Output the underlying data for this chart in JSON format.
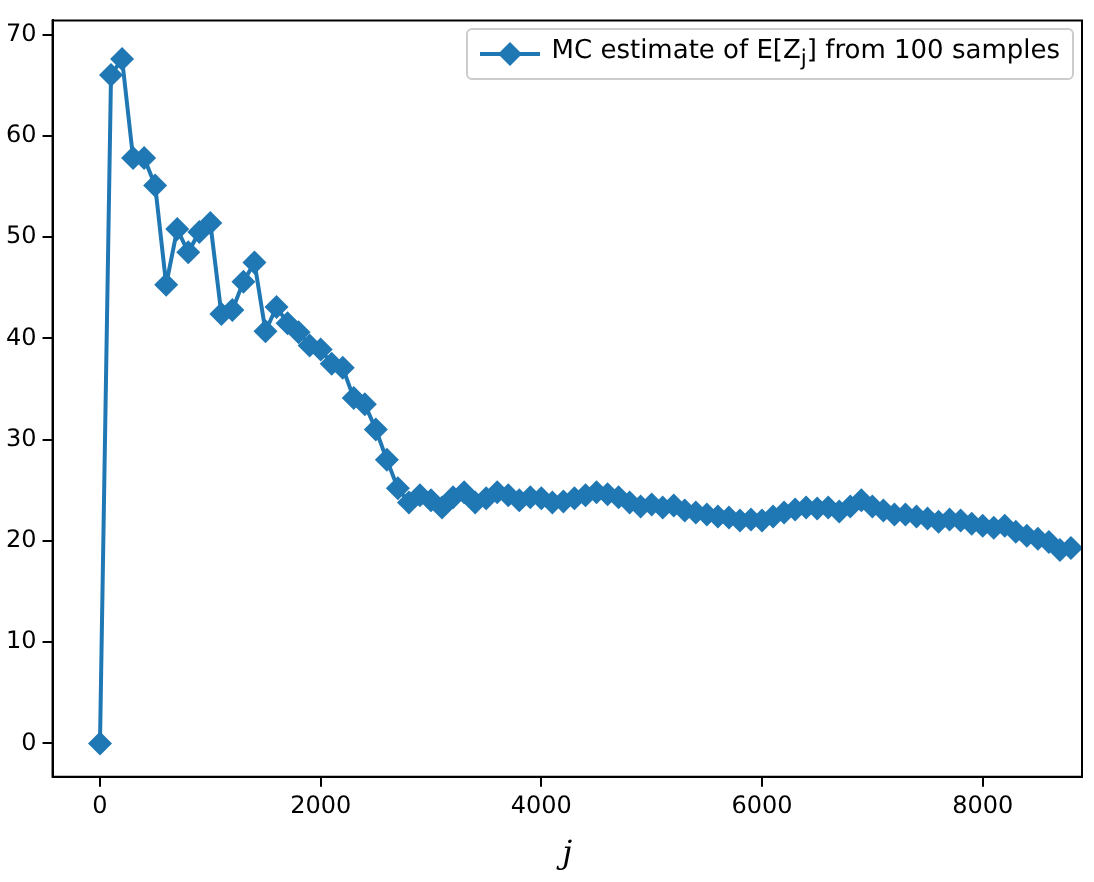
{
  "chart_data": {
    "type": "line",
    "xlabel": "j",
    "marker": "diamond",
    "legend": "top right",
    "grid": false,
    "line_style": "solid",
    "xlim": [
      -430,
      8900
    ],
    "ylim": [
      -3.3,
      71.4
    ],
    "xticks": [
      0,
      2000,
      4000,
      6000,
      8000
    ],
    "yticks": [
      0,
      10,
      20,
      30,
      40,
      50,
      60,
      70
    ],
    "x": [
      0,
      100,
      200,
      300,
      400,
      500,
      600,
      700,
      800,
      900,
      1000,
      1100,
      1200,
      1300,
      1400,
      1500,
      1600,
      1700,
      1800,
      1900,
      2000,
      2100,
      2200,
      2300,
      2400,
      2500,
      2600,
      2700,
      2800,
      2900,
      3000,
      3100,
      3200,
      3300,
      3400,
      3500,
      3600,
      3700,
      3800,
      3900,
      4000,
      4100,
      4200,
      4300,
      4400,
      4500,
      4600,
      4700,
      4800,
      4900,
      5000,
      5100,
      5200,
      5300,
      5400,
      5500,
      5600,
      5700,
      5800,
      5900,
      6000,
      6100,
      6200,
      6300,
      6400,
      6500,
      6600,
      6700,
      6800,
      6900,
      7000,
      7100,
      7200,
      7300,
      7400,
      7500,
      7600,
      7700,
      7800,
      7900,
      8000,
      8100,
      8200,
      8300,
      8400,
      8500,
      8600,
      8700,
      8800
    ],
    "series": [
      {
        "name": "MC estimate of E[Z$_{j}$] from 100 samples",
        "color": "#1f77b4",
        "values": [
          0,
          66,
          67.6,
          57.8,
          57.8,
          55.1,
          45.3,
          50.8,
          48.5,
          50.5,
          51.4,
          42.4,
          42.8,
          45.6,
          47.5,
          40.7,
          43.1,
          41.5,
          40.6,
          39.3,
          38.9,
          37.5,
          37.1,
          34.1,
          33.5,
          31.0,
          28.0,
          25.2,
          23.8,
          24.5,
          24.0,
          23.3,
          24.3,
          24.8,
          23.8,
          24.2,
          24.8,
          24.5,
          24.0,
          24.3,
          24.2,
          23.8,
          23.9,
          24.2,
          24.5,
          24.8,
          24.6,
          24.3,
          23.8,
          23.4,
          23.6,
          23.3,
          23.5,
          23.0,
          22.8,
          22.6,
          22.4,
          22.3,
          22.0,
          22.1,
          22.0,
          22.4,
          22.8,
          23.1,
          23.3,
          23.2,
          23.3,
          22.9,
          23.4,
          24.0,
          23.4,
          23.0,
          22.6,
          22.6,
          22.4,
          22.2,
          21.9,
          22.1,
          22.0,
          21.7,
          21.5,
          21.3,
          21.5,
          20.9,
          20.5,
          20.2,
          19.9,
          19.1,
          19.3
        ]
      }
    ]
  }
}
